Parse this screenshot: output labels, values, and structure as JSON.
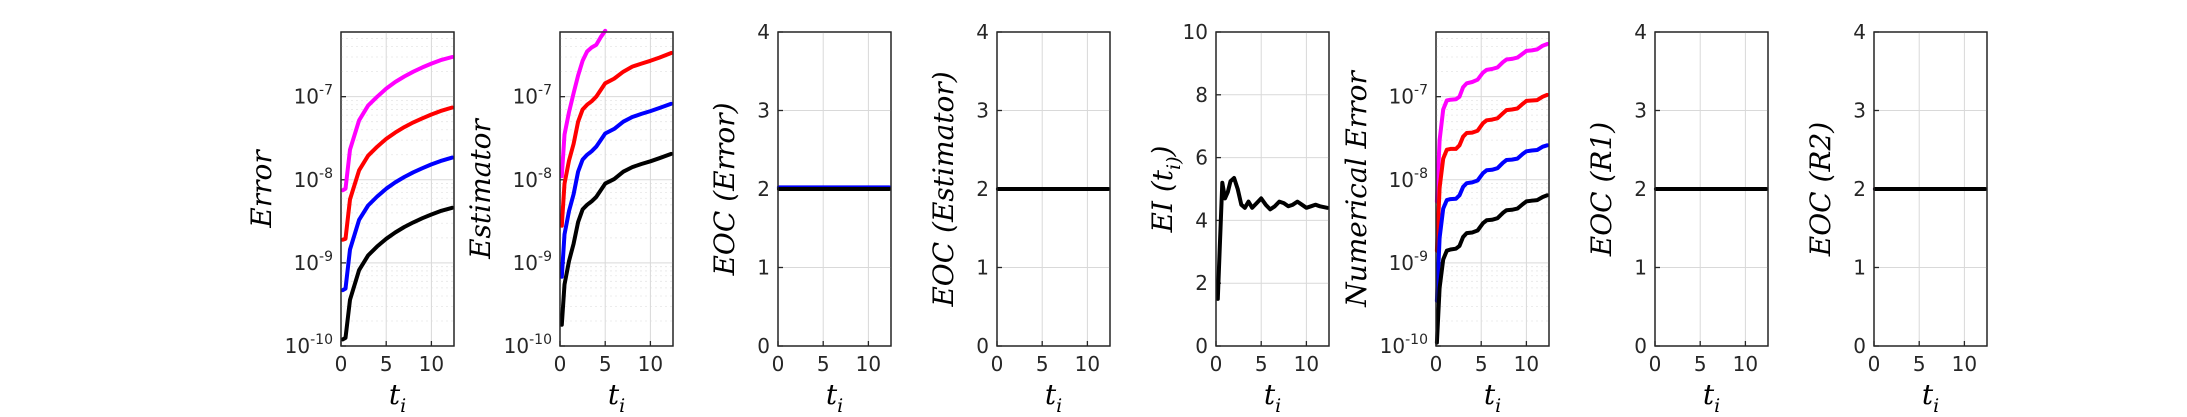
{
  "colors": {
    "magenta": "#ff00ff",
    "red": "#ff0000",
    "blue": "#0000ff",
    "black": "#000000"
  },
  "chart_data": [
    {
      "type": "line",
      "title": "",
      "xlabel": "t_i",
      "ylabel": "Error",
      "yscale": "log",
      "xlim": [
        0,
        12.5
      ],
      "ylim": [
        1e-10,
        6e-07
      ],
      "xticks": [
        "0",
        "5",
        "10"
      ],
      "yticks": [
        "10^-10",
        "10^-9",
        "10^-8",
        "10^-7"
      ],
      "grid": true,
      "series": [
        {
          "color": "#ff00ff",
          "x": [
            0.2,
            0.5,
            1,
            2,
            3,
            4,
            5,
            6,
            7,
            8,
            9,
            10,
            11,
            12.3
          ],
          "y": [
            7.5e-09,
            7.8e-09,
            2.3e-08,
            5.2e-08,
            7.8e-08,
            1e-07,
            1.25e-07,
            1.5e-07,
            1.75e-07,
            2e-07,
            2.25e-07,
            2.5e-07,
            2.75e-07,
            3e-07
          ]
        },
        {
          "color": "#ff0000",
          "x": [
            0.2,
            0.5,
            1,
            2,
            3,
            4,
            5,
            6,
            7,
            8,
            9,
            10,
            11,
            12.3
          ],
          "y": [
            1.9e-09,
            1.95e-09,
            5.8e-09,
            1.3e-08,
            1.95e-08,
            2.5e-08,
            3.1e-08,
            3.7e-08,
            4.3e-08,
            4.9e-08,
            5.5e-08,
            6.1e-08,
            6.7e-08,
            7.4e-08
          ]
        },
        {
          "color": "#0000ff",
          "x": [
            0.2,
            0.5,
            1,
            2,
            3,
            4,
            5,
            6,
            7,
            8,
            9,
            10,
            11,
            12.3
          ],
          "y": [
            4.7e-10,
            4.9e-10,
            1.45e-09,
            3.3e-09,
            4.9e-09,
            6.3e-09,
            7.8e-09,
            9.3e-09,
            1.08e-08,
            1.23e-08,
            1.38e-08,
            1.53e-08,
            1.68e-08,
            1.85e-08
          ]
        },
        {
          "color": "#000000",
          "x": [
            0.2,
            0.5,
            1,
            2,
            3,
            4,
            5,
            6,
            7,
            8,
            9,
            10,
            11,
            12.3
          ],
          "y": [
            1.2e-10,
            1.25e-10,
            3.6e-10,
            8.2e-10,
            1.23e-09,
            1.58e-09,
            1.95e-09,
            2.32e-09,
            2.7e-09,
            3.07e-09,
            3.45e-09,
            3.82e-09,
            4.2e-09,
            4.6e-09
          ]
        }
      ]
    },
    {
      "type": "line",
      "title": "",
      "xlabel": "t_i",
      "ylabel": "Estimator",
      "yscale": "log",
      "xlim": [
        0,
        12.5
      ],
      "ylim": [
        1e-10,
        6e-07
      ],
      "xticks": [
        "0",
        "5",
        "10"
      ],
      "yticks": [
        "10^-10",
        "10^-9",
        "10^-8",
        "10^-7"
      ],
      "grid": true,
      "series": [
        {
          "color": "#ff00ff",
          "x": [
            0.2,
            0.5,
            1,
            1.5,
            2,
            2.5,
            3,
            3.5,
            4,
            4.5,
            5
          ],
          "y": [
            1.1e-08,
            3.5e-08,
            6.5e-08,
            1.1e-07,
            1.8e-07,
            2.7e-07,
            3.5e-07,
            3.9e-07,
            4.2e-07,
            5.2e-07,
            6.2e-07
          ]
        },
        {
          "color": "#ff0000",
          "x": [
            0.2,
            0.5,
            1,
            1.5,
            2,
            2.5,
            3,
            3.5,
            4,
            5,
            6,
            7,
            8,
            9,
            10,
            11,
            12.3
          ],
          "y": [
            2.8e-09,
            9e-09,
            1.7e-08,
            2.7e-08,
            5e-08,
            7e-08,
            8e-08,
            8.8e-08,
            1e-07,
            1.45e-07,
            1.65e-07,
            2e-07,
            2.3e-07,
            2.5e-07,
            2.7e-07,
            2.95e-07,
            3.35e-07
          ]
        },
        {
          "color": "#0000ff",
          "x": [
            0.2,
            0.5,
            1,
            1.5,
            2,
            2.5,
            3,
            3.5,
            4,
            5,
            6,
            7,
            8,
            9,
            10,
            11,
            12.3
          ],
          "y": [
            6.8e-10,
            2.2e-09,
            4.2e-09,
            6.7e-09,
            1.25e-08,
            1.75e-08,
            2e-08,
            2.2e-08,
            2.5e-08,
            3.6e-08,
            4.1e-08,
            5e-08,
            5.7e-08,
            6.2e-08,
            6.7e-08,
            7.3e-08,
            8.2e-08
          ]
        },
        {
          "color": "#000000",
          "x": [
            0.2,
            0.5,
            1,
            1.5,
            2,
            2.5,
            3,
            3.5,
            4,
            5,
            6,
            7,
            8,
            9,
            10,
            11,
            12.3
          ],
          "y": [
            1.8e-10,
            5.5e-10,
            1.05e-09,
            1.7e-09,
            3.1e-09,
            4.4e-09,
            5e-09,
            5.5e-09,
            6.2e-09,
            9e-09,
            1.02e-08,
            1.25e-08,
            1.42e-08,
            1.55e-08,
            1.67e-08,
            1.82e-08,
            2.05e-08
          ]
        }
      ]
    },
    {
      "type": "line",
      "title": "",
      "xlabel": "t_i",
      "ylabel": "EOC (Error)",
      "xlim": [
        0,
        12.5
      ],
      "ylim": [
        0,
        4
      ],
      "xticks": [
        "0",
        "5",
        "10"
      ],
      "yticks": [
        "0",
        "1",
        "2",
        "3",
        "4"
      ],
      "grid": true,
      "series": [
        {
          "color": "#0000ff",
          "x": [
            0.1,
            12.3
          ],
          "y": [
            2.02,
            2.02
          ]
        },
        {
          "color": "#000000",
          "x": [
            0.1,
            12.3
          ],
          "y": [
            2.0,
            2.0
          ]
        }
      ]
    },
    {
      "type": "line",
      "title": "",
      "xlabel": "t_i",
      "ylabel": "EOC (Estimator)",
      "xlim": [
        0,
        12.5
      ],
      "ylim": [
        0,
        4
      ],
      "xticks": [
        "0",
        "5",
        "10"
      ],
      "yticks": [
        "0",
        "1",
        "2",
        "3",
        "4"
      ],
      "grid": true,
      "series": [
        {
          "color": "#000000",
          "x": [
            0.1,
            12.3
          ],
          "y": [
            2.0,
            2.0
          ]
        }
      ]
    },
    {
      "type": "line",
      "title": "",
      "xlabel": "t_i",
      "ylabel": "EI (t_i)",
      "xlim": [
        0,
        12.5
      ],
      "ylim": [
        0,
        10
      ],
      "xticks": [
        "0",
        "5",
        "10"
      ],
      "yticks": [
        "0",
        "2",
        "4",
        "6",
        "8",
        "10"
      ],
      "grid": true,
      "series": [
        {
          "color": "#000000",
          "x": [
            0.2,
            0.4,
            0.7,
            1,
            1.3,
            1.6,
            2,
            2.4,
            2.8,
            3.2,
            3.6,
            4,
            4.5,
            5,
            5.5,
            6,
            6.5,
            7,
            7.5,
            8,
            8.5,
            9,
            9.5,
            10,
            10.5,
            11,
            11.5,
            12.3
          ],
          "y": [
            1.5,
            3.0,
            5.2,
            4.7,
            4.9,
            5.25,
            5.35,
            5.0,
            4.5,
            4.4,
            4.6,
            4.4,
            4.55,
            4.7,
            4.5,
            4.35,
            4.45,
            4.6,
            4.55,
            4.45,
            4.5,
            4.6,
            4.5,
            4.4,
            4.45,
            4.5,
            4.45,
            4.4
          ]
        }
      ]
    },
    {
      "type": "line",
      "title": "",
      "xlabel": "t_i",
      "ylabel": "Numerical Error",
      "yscale": "log",
      "xlim": [
        0,
        12.5
      ],
      "ylim": [
        1e-10,
        6e-07
      ],
      "xticks": [
        "0",
        "5",
        "10"
      ],
      "yticks": [
        "10^-10",
        "10^-9",
        "10^-8",
        "10^-7"
      ],
      "grid": true,
      "series": [
        {
          "color": "#ff00ff",
          "x": [
            0.1,
            0.4,
            0.8,
            1.2,
            1.6,
            2.2,
            2.6,
            3.0,
            3.4,
            4.0,
            4.6,
            5.2,
            5.6,
            6.2,
            6.8,
            7.4,
            7.8,
            8.4,
            9.0,
            9.6,
            10.0,
            10.6,
            11.2,
            11.8,
            12.3
          ],
          "y": [
            5.5e-09,
            3e-08,
            7e-08,
            9e-08,
            9.2e-08,
            9.3e-08,
            1e-07,
            1.3e-07,
            1.45e-07,
            1.5e-07,
            1.6e-07,
            1.95e-07,
            2.1e-07,
            2.15e-07,
            2.25e-07,
            2.6e-07,
            2.8e-07,
            2.85e-07,
            2.95e-07,
            3.3e-07,
            3.55e-07,
            3.6e-07,
            3.7e-07,
            4.1e-07,
            4.3e-07
          ]
        },
        {
          "color": "#ff0000",
          "x": [
            0.1,
            0.4,
            0.8,
            1.2,
            1.6,
            2.2,
            2.6,
            3.0,
            3.4,
            4.0,
            4.6,
            5.2,
            5.6,
            6.2,
            6.8,
            7.4,
            7.8,
            8.4,
            9.0,
            9.6,
            10.0,
            10.6,
            11.2,
            11.8,
            12.3
          ],
          "y": [
            1.4e-09,
            8e-09,
            1.8e-08,
            2.3e-08,
            2.35e-08,
            2.35e-08,
            2.6e-08,
            3.3e-08,
            3.65e-08,
            3.7e-08,
            3.9e-08,
            4.8e-08,
            5.2e-08,
            5.3e-08,
            5.5e-08,
            6.3e-08,
            6.9e-08,
            7e-08,
            7.2e-08,
            8.2e-08,
            8.9e-08,
            9e-08,
            9.1e-08,
            1e-07,
            1.05e-07
          ]
        },
        {
          "color": "#0000ff",
          "x": [
            0.1,
            0.4,
            0.8,
            1.2,
            1.6,
            2.2,
            2.6,
            3.0,
            3.4,
            4.0,
            4.6,
            5.2,
            5.6,
            6.2,
            6.8,
            7.4,
            7.8,
            8.4,
            9.0,
            9.6,
            10.0,
            10.6,
            11.2,
            11.8,
            12.3
          ],
          "y": [
            3.5e-10,
            2e-09,
            4.5e-09,
            5.7e-09,
            5.85e-09,
            5.9e-09,
            6.5e-09,
            8.2e-09,
            9.1e-09,
            9.3e-09,
            9.8e-09,
            1.2e-08,
            1.3e-08,
            1.32e-08,
            1.38e-08,
            1.6e-08,
            1.73e-08,
            1.75e-08,
            1.8e-08,
            2.05e-08,
            2.2e-08,
            2.25e-08,
            2.28e-08,
            2.5e-08,
            2.6e-08
          ]
        },
        {
          "color": "#000000",
          "x": [
            0.1,
            0.4,
            0.8,
            1.2,
            1.6,
            2.2,
            2.6,
            3.0,
            3.4,
            4.0,
            4.6,
            5.2,
            5.6,
            6.2,
            6.8,
            7.4,
            7.8,
            8.4,
            9.0,
            9.6,
            10.0,
            10.6,
            11.2,
            11.8,
            12.3
          ],
          "y": [
            1.1e-10,
            5e-10,
            1.1e-09,
            1.4e-09,
            1.45e-09,
            1.48e-09,
            1.6e-09,
            2.05e-09,
            2.28e-09,
            2.32e-09,
            2.45e-09,
            3e-09,
            3.25e-09,
            3.3e-09,
            3.45e-09,
            4e-09,
            4.3e-09,
            4.35e-09,
            4.5e-09,
            5.1e-09,
            5.5e-09,
            5.6e-09,
            5.7e-09,
            6.2e-09,
            6.5e-09
          ]
        }
      ]
    },
    {
      "type": "line",
      "title": "",
      "xlabel": "t_i",
      "ylabel": "EOC (R1)",
      "xlim": [
        0,
        12.5
      ],
      "ylim": [
        0,
        4
      ],
      "xticks": [
        "0",
        "5",
        "10"
      ],
      "yticks": [
        "0",
        "1",
        "2",
        "3",
        "4"
      ],
      "grid": true,
      "series": [
        {
          "color": "#000000",
          "x": [
            0.1,
            12.3
          ],
          "y": [
            2.0,
            2.0
          ]
        }
      ]
    },
    {
      "type": "line",
      "title": "",
      "xlabel": "t_i",
      "ylabel": "EOC (R2)",
      "xlim": [
        0,
        12.5
      ],
      "ylim": [
        0,
        4
      ],
      "xticks": [
        "0",
        "5",
        "10"
      ],
      "yticks": [
        "0",
        "1",
        "2",
        "3",
        "4"
      ],
      "grid": true,
      "series": [
        {
          "color": "#ff00ff",
          "x": [
            0.1,
            1.0
          ],
          "y": [
            2.0,
            2.0
          ]
        },
        {
          "color": "#000000",
          "x": [
            0.1,
            12.3
          ],
          "y": [
            2.0,
            2.0
          ]
        }
      ]
    }
  ]
}
